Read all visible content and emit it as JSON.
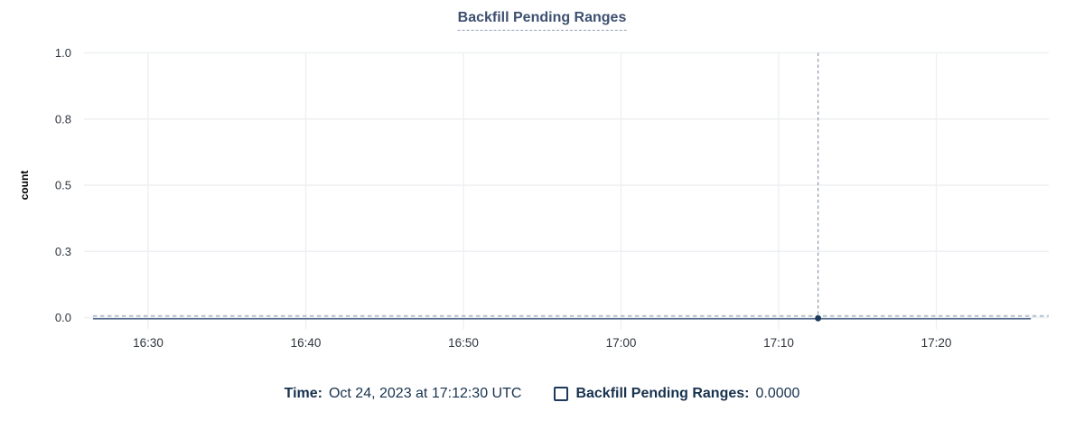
{
  "chart": {
    "title": "Backfill Pending Ranges"
  },
  "chart_data": {
    "type": "line",
    "title": "Backfill Pending Ranges",
    "xlabel": "",
    "ylabel": "count",
    "ylim": [
      0,
      1
    ],
    "grid": true,
    "x_ticks": [
      "16:30",
      "16:40",
      "16:50",
      "17:00",
      "17:10",
      "17:20"
    ],
    "y_ticks": [
      {
        "value": 1.0,
        "label": "1.0"
      },
      {
        "value": 0.75,
        "label": "0.8"
      },
      {
        "value": 0.5,
        "label": "0.5"
      },
      {
        "value": 0.25,
        "label": "0.3"
      },
      {
        "value": 0.0,
        "label": "0.0"
      }
    ],
    "series": [
      {
        "name": "Backfill Pending Ranges",
        "x_start": "16:26:30",
        "x_end": "17:26:00",
        "constant_value": 0.0
      }
    ],
    "crosshair": {
      "x": "17:12:30",
      "y": 0.0
    }
  },
  "legend": {
    "time_label": "Time:",
    "time_value": "Oct 24, 2023 at 17:12:30 UTC",
    "series_label": "Backfill Pending Ranges:",
    "series_value": "0.0000"
  },
  "colors": {
    "title_text": "#3D5070",
    "legend_text": "#17324E",
    "grid": "#EDEFF2",
    "tick_label": "#2E353F",
    "axis_label": "#000000",
    "series_line": "#54698C",
    "crosshair_vertical": "#8591A2",
    "crosshair_horizontal": "#B7C3CF",
    "marker": "#1C3A5C"
  }
}
